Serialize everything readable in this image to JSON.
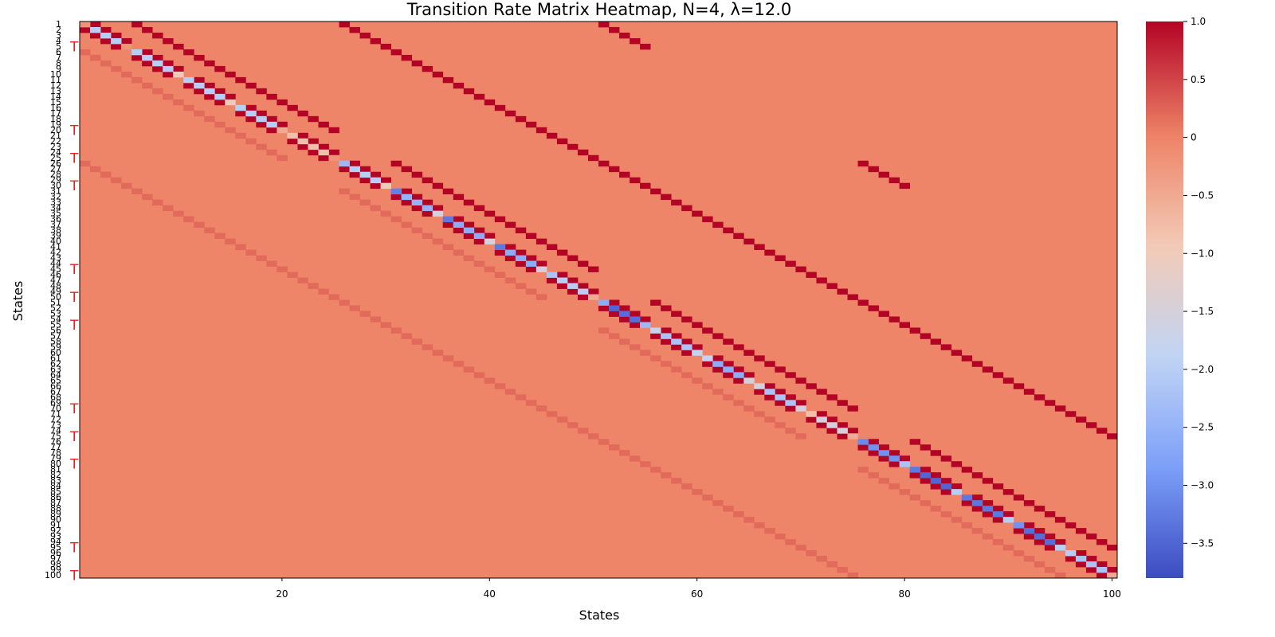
{
  "chart_data": {
    "type": "heatmap",
    "title": "Transition Rate Matrix Heatmap, N=4, λ=12.0",
    "xlabel": "States",
    "ylabel": "States",
    "n_states": 100,
    "x_tick_labels": [
      "20",
      "40",
      "60",
      "80",
      "100"
    ],
    "x_tick_values": [
      20,
      40,
      60,
      80,
      100
    ],
    "y_tick_labels": [
      "1",
      "2",
      "3",
      "4",
      "5",
      "6",
      "7",
      "8",
      "9",
      "10",
      "11",
      "12",
      "13",
      "14",
      "15",
      "16",
      "17",
      "18",
      "19",
      "20",
      "21",
      "22",
      "23",
      "24",
      "25",
      "26",
      "27",
      "28",
      "29",
      "30",
      "31",
      "32",
      "33",
      "34",
      "35",
      "36",
      "37",
      "38",
      "39",
      "40",
      "41",
      "42",
      "43",
      "44",
      "45",
      "46",
      "47",
      "48",
      "49",
      "50",
      "51",
      "52",
      "53",
      "54",
      "55",
      "56",
      "57",
      "58",
      "59",
      "60",
      "61",
      "62",
      "63",
      "64",
      "65",
      "66",
      "67",
      "68",
      "69",
      "70",
      "71",
      "72",
      "73",
      "74",
      "75",
      "76",
      "77",
      "78",
      "79",
      "80",
      "81",
      "82",
      "83",
      "84",
      "85",
      "86",
      "87",
      "88",
      "89",
      "90",
      "91",
      "92",
      "93",
      "94",
      "95",
      "96",
      "97",
      "98",
      "99",
      "100"
    ],
    "marker_label": "T",
    "terminal_states": [
      5,
      20,
      25,
      30,
      45,
      50,
      55,
      70,
      75,
      80,
      95,
      100
    ],
    "colorbar": {
      "colormap": "coolwarm",
      "vmin": -3.8,
      "vmax": 1.0,
      "tick_labels": [
        "1.0",
        "0.5",
        "0",
        "−0.5",
        "−1.0",
        "−1.5",
        "−2.0",
        "−2.5",
        "−3.0",
        "−3.5"
      ],
      "tick_values": [
        1.0,
        0.5,
        0.0,
        -0.5,
        -1.0,
        -1.5,
        -2.0,
        -2.5,
        -3.0,
        -3.5
      ]
    },
    "default_value": 0,
    "up_rate": 1.0,
    "down_rate": 0.2,
    "diagonal": [
      -0.2,
      -2.0,
      -2.0,
      -2.0,
      -0.2,
      -2.0,
      -2.0,
      -2.0,
      -2.0,
      -1.0,
      -2.0,
      -2.0,
      -2.0,
      -2.0,
      -1.0,
      -2.0,
      -2.0,
      -2.0,
      -2.0,
      -0.5,
      -0.8,
      -0.8,
      -0.8,
      -0.8,
      -0.2,
      -2.4,
      -2.0,
      -2.0,
      -2.0,
      -1.0,
      -3.2,
      -2.5,
      -2.5,
      -2.5,
      -1.5,
      -3.3,
      -2.6,
      -2.6,
      -2.6,
      -1.5,
      -3.3,
      -2.6,
      -2.6,
      -2.6,
      -1.5,
      -2.2,
      -2.0,
      -2.0,
      -2.0,
      -0.5,
      -2.6,
      -3.5,
      -3.4,
      -3.4,
      -2.4,
      -1.8,
      -2.2,
      -2.2,
      -2.2,
      -1.8,
      -1.8,
      -2.6,
      -2.6,
      -2.6,
      -1.5,
      -1.5,
      -2.2,
      -2.2,
      -2.2,
      -1.5,
      -0.8,
      -1.5,
      -1.5,
      -1.5,
      -0.5,
      -3.1,
      -3.0,
      -3.0,
      -3.0,
      -2.2,
      -3.3,
      -3.5,
      -3.5,
      -3.5,
      -2.0,
      -3.3,
      -3.3,
      -3.3,
      -3.3,
      -2.0,
      -3.0,
      -3.4,
      -3.4,
      -3.4,
      -2.0,
      -2.0,
      -2.2,
      -2.2,
      -2.2,
      -0.5
    ]
  }
}
